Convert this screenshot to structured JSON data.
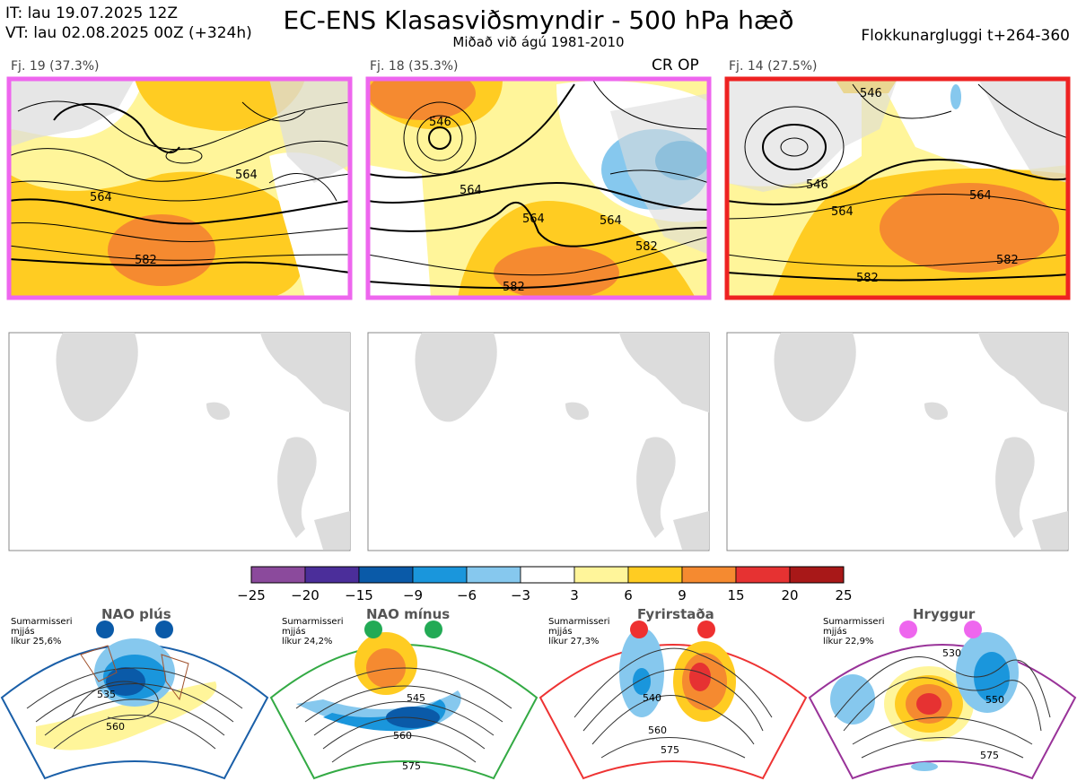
{
  "header": {
    "it": "IT: lau 19.07.2025 12Z",
    "vt": "VT: lau 02.08.2025 00Z  (+324h)",
    "title": "EC-ENS Klasasviðsmyndir - 500 hPa hæð",
    "subtitle": "Miðað við ágú 1981-2010",
    "window": "Flokkunargluggi t+264-360"
  },
  "clusters": [
    {
      "label": "Fj. 19 (37.3%)",
      "border": "#ee66ee",
      "extra": "",
      "contours": [
        "564",
        "564",
        "582"
      ]
    },
    {
      "label": "Fj. 18 (35.3%)",
      "border": "#ee66ee",
      "extra": "CR OP",
      "contours": [
        "546",
        "564",
        "564",
        "564",
        "582",
        "582"
      ]
    },
    {
      "label": "Fj. 14 (27.5%)",
      "border": "#ee2222",
      "extra": "",
      "contours": [
        "546",
        "546",
        "564",
        "564",
        "582",
        "582"
      ]
    }
  ],
  "colorbar": {
    "ticks": [
      "−25",
      "−20",
      "−15",
      "−9",
      "−6",
      "−3",
      "3",
      "6",
      "9",
      "15",
      "20",
      "25"
    ],
    "colors": [
      "#8b4a9c",
      "#4b2e9a",
      "#0a5aa8",
      "#1a96dc",
      "#86c8ee",
      "#ffffff",
      "#fff59a",
      "#ffcc22",
      "#f58a30",
      "#e63232",
      "#a81818"
    ]
  },
  "regimes": [
    {
      "title": "NAO plús",
      "dot_color": "#0a5aa8",
      "border": "#1a5fa8",
      "season": "Sumarmisseri",
      "kind": "mjjás",
      "prob": "líkur 25,6%",
      "contours": [
        "535",
        "560"
      ]
    },
    {
      "title": "NAO mínus",
      "dot_color": "#22aa55",
      "border": "#33aa44",
      "season": "Sumarmisseri",
      "kind": "mjjás",
      "prob": "líkur 24,2%",
      "contours": [
        "545",
        "560",
        "575"
      ]
    },
    {
      "title": "Fyrirstaða",
      "dot_color": "#ee3030",
      "border": "#ee3333",
      "season": "Sumarmisseri",
      "kind": "mjjás",
      "prob": "líkur 27,3%",
      "contours": [
        "540",
        "560",
        "575"
      ]
    },
    {
      "title": "Hryggur",
      "dot_color": "#ee66ee",
      "border": "#993399",
      "season": "Sumarmisseri",
      "kind": "mjjás",
      "prob": "líkur 22,9%",
      "contours": [
        "530",
        "550",
        "575"
      ]
    }
  ]
}
